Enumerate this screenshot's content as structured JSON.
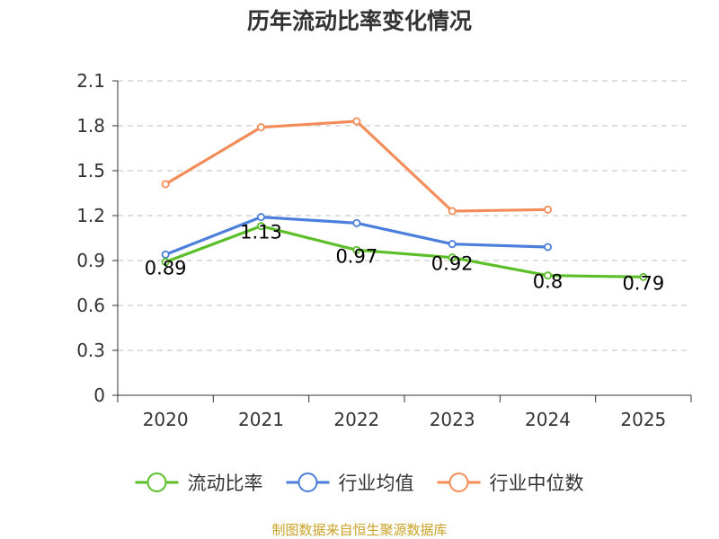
{
  "chart_data": {
    "type": "line",
    "title": "历年流动比率变化情况",
    "xlabel": "",
    "ylabel": "",
    "categories": [
      "2020",
      "2021",
      "2022",
      "2023",
      "2024",
      "2025"
    ],
    "ylim": [
      0,
      2.1
    ],
    "yticks": [
      "0",
      "0.3",
      "0.6",
      "0.9",
      "1.2",
      "1.5",
      "1.8",
      "2.1"
    ],
    "grid": true,
    "legend_position": "bottom",
    "series": [
      {
        "name": "流动比率",
        "color": "#5cbf2a",
        "values": [
          0.89,
          1.13,
          0.97,
          0.92,
          0.8,
          0.79
        ],
        "labels": [
          "0.89",
          "1.13",
          "0.97",
          "0.92",
          "0.8",
          "0.79"
        ]
      },
      {
        "name": "行业均值",
        "color": "#4b7fdb",
        "values": [
          0.94,
          1.19,
          1.15,
          1.01,
          0.99,
          null
        ]
      },
      {
        "name": "行业中位数",
        "color": "#f48c5a",
        "values": [
          1.41,
          1.79,
          1.83,
          1.23,
          1.24,
          null
        ]
      }
    ]
  },
  "source": "制图数据来自恒生聚源数据库"
}
